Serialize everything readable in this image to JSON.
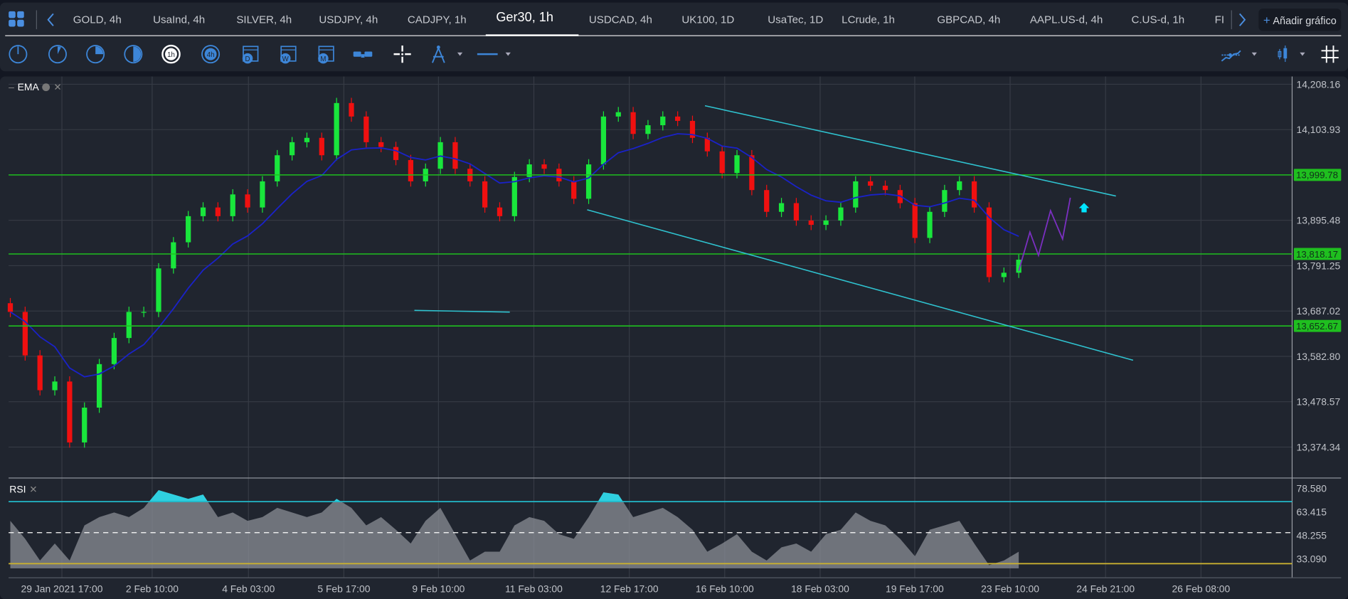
{
  "tabs": [
    {
      "label": "GOLD, 4h"
    },
    {
      "label": "UsaInd, 4h"
    },
    {
      "label": "SILVER, 4h"
    },
    {
      "label": "USDJPY, 4h"
    },
    {
      "label": "CADJPY, 1h"
    },
    {
      "label": "Ger30, 1h",
      "active": true
    },
    {
      "label": "USDCAD, 4h"
    },
    {
      "label": "UK100, 1D"
    },
    {
      "label": "UsaTec, 1D"
    },
    {
      "label": "LCrude, 1h"
    },
    {
      "label": "GBPCAD, 4h"
    },
    {
      "label": "AAPL.US-d, 4h"
    },
    {
      "label": "C.US-d, 1h"
    },
    {
      "label": "FI"
    }
  ],
  "add_chart": {
    "plus": "+",
    "label": "Añadir gráfico"
  },
  "toolbar": {
    "timeframes": [
      "1m",
      "5m",
      "15m",
      "30m",
      "1h",
      "4h",
      "D",
      "W",
      "M"
    ],
    "selected_timeframe": "1h",
    "icons": [
      "clock-1m-icon",
      "clock-5m-icon",
      "clock-15m-icon",
      "clock-30m-icon",
      "clock-1h-icon",
      "clock-4h-icon",
      "calendar-day-icon",
      "calendar-week-icon",
      "calendar-month-icon",
      "chart-link-icon",
      "crosshair-icon",
      "compass-drawing-icon",
      "line-style-icon",
      "indicators-icon",
      "candle-type-icon",
      "grid-layout-icon"
    ],
    "accent": "#3d86d8"
  },
  "indicators": {
    "main": "EMA",
    "sub": "RSI"
  },
  "chart_data": [
    {
      "type": "candlestick",
      "symbol": "Ger30, 1h",
      "y_ticks": [
        "14,208.16",
        "14,103.93",
        "13,895.48",
        "13,791.25",
        "13,687.02",
        "13,582.80",
        "13,478.57",
        "13,374.34"
      ],
      "y_tick_values": [
        14208.16,
        14103.93,
        13895.48,
        13791.25,
        13687.02,
        13582.8,
        13478.57,
        13374.34
      ],
      "x_ticks": [
        "29 Jan 2021 17:00",
        "2 Feb 10:00",
        "4 Feb 03:00",
        "5 Feb 17:00",
        "9 Feb 10:00",
        "11 Feb 03:00",
        "12 Feb 17:00",
        "16 Feb 10:00",
        "18 Feb 03:00",
        "19 Feb 17:00",
        "23 Feb 10:00",
        "24 Feb 21:00",
        "26 Feb 08:00"
      ],
      "closes": [
        13685,
        13585,
        13505,
        13525,
        13385,
        13465,
        13565,
        13625,
        13685,
        13685,
        13785,
        13845,
        13905,
        13925,
        13905,
        13955,
        13925,
        13985,
        14045,
        14075,
        14085,
        14045,
        14165,
        14134,
        14075,
        14064,
        14034,
        13985,
        14014,
        14075,
        14014,
        13985,
        13925,
        13905,
        13995,
        14024,
        14014,
        13985,
        13945,
        14024,
        14134,
        14144,
        14094,
        14114,
        14134,
        14124,
        14085,
        14054,
        14004,
        14045,
        13965,
        13915,
        13935,
        13895,
        13885,
        13895,
        13925,
        13985,
        13975,
        13965,
        13935,
        13855,
        13915,
        13965,
        13985,
        13925,
        13765,
        13775,
        13805
      ],
      "levels": [
        {
          "label": "13,999.78",
          "value": 13999.78
        },
        {
          "label": "13,818.17",
          "value": 13818.17
        },
        {
          "label": "13,652.67",
          "value": 13652.67
        }
      ],
      "colors": {
        "up": "#19e63c",
        "down": "#f01010",
        "ema": "#1a22c8",
        "level": "#1fbf1f",
        "trendline": "#2fc3d0",
        "projection": "#7a2fc0",
        "arrow": "#00e5ff"
      },
      "grid": true
    },
    {
      "type": "area",
      "name": "RSI",
      "y_ticks": [
        "78.580",
        "63.415",
        "48.255",
        "33.090"
      ],
      "y_tick_values": [
        78.58,
        63.415,
        48.255,
        33.09
      ],
      "values": [
        57.6,
        46,
        32,
        43,
        32,
        54.7,
        60,
        63,
        60,
        66,
        77.4,
        74.6,
        71.8,
        74.6,
        60,
        63,
        57.6,
        60,
        66,
        63,
        60,
        63,
        71.8,
        66,
        54.7,
        60,
        51.9,
        43,
        57.6,
        66,
        49,
        32,
        37.7,
        37.7,
        54.7,
        60,
        57.6,
        49,
        46,
        60,
        76,
        74.6,
        60,
        63,
        66,
        60,
        51.9,
        37.7,
        43,
        49,
        37.7,
        32,
        40.5,
        43,
        37.7,
        49,
        51.9,
        63,
        57.6,
        54.7,
        46,
        34.8,
        51.9,
        54.7,
        57.6,
        43,
        29,
        32,
        37.7
      ],
      "overbought": 70,
      "middle": 50,
      "oversold": 30,
      "colors": {
        "overbought": "#22b8c8",
        "middle": "#ffffff",
        "oversold": "#c8b030",
        "fill": "#8a8d95"
      }
    }
  ]
}
